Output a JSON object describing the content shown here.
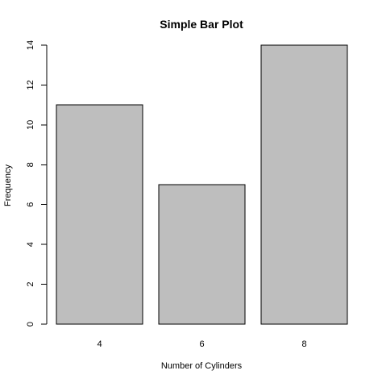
{
  "chart_data": {
    "type": "bar",
    "title": "Simple Bar Plot",
    "xlabel": "Number of Cylinders",
    "ylabel": "Frequency",
    "categories": [
      "4",
      "6",
      "8"
    ],
    "values": [
      11,
      7,
      14
    ],
    "ylim": [
      0,
      14
    ],
    "yticks": [
      "0",
      "2",
      "4",
      "6",
      "8",
      "10",
      "12",
      "14"
    ],
    "grid": false,
    "legend": "none",
    "bar_fill": "#bebebe",
    "bar_stroke": "#000000"
  }
}
